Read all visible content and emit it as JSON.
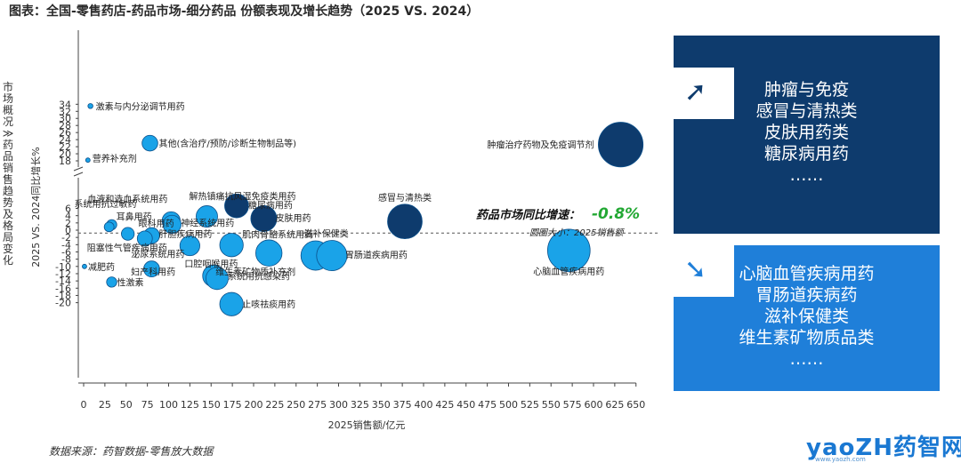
{
  "title": "图表：全国-零售药店-药品市场-细分药品 份额表现及增长趋势（2025 VS. 2024）",
  "side_title": "市场概况 ≫ 药品销售趋势及格局变化",
  "source": "数据来源：药智数据-零售放大数据",
  "annotation": {
    "growth_label": "药品市场同比增速：",
    "growth_value": "-0.8%",
    "bubble_note": "圆圈大小：2025销售额",
    "growth_color": "#22a833"
  },
  "panel_top": {
    "items": [
      "肿瘤与免疫",
      "感冒与清热类",
      "皮肤用药类",
      "糖尿病用药",
      "……"
    ],
    "color": "#0e3b6d"
  },
  "panel_bottom": {
    "items": [
      "心脑血管疾病用药",
      "胃肠道疾病药",
      "滋补保健类",
      "维生素矿物质品类",
      "……"
    ],
    "color": "#1f7fd9"
  },
  "logo": {
    "text": "yaoZH药智网",
    "url": "www.yaozh.com"
  },
  "chart_data": {
    "type": "scatter",
    "title": "",
    "xlabel": "2025销售额/亿元",
    "ylabel": "2025 VS. 2024同比增长%",
    "xlim": [
      0,
      650
    ],
    "x_ticks": [
      "0",
      "25",
      "50",
      "75",
      "100",
      "125",
      "150",
      "175",
      "200",
      "225",
      "250",
      "275",
      "300",
      "325",
      "350",
      "375",
      "400",
      "425",
      "450",
      "475",
      "500",
      "525",
      "550",
      "575",
      "600",
      "625",
      "650"
    ],
    "y_ticks_upper": [
      "34",
      "32",
      "30",
      "28",
      "26",
      "24",
      "22",
      "20",
      "18"
    ],
    "y_ticks_lower": [
      "6",
      "4",
      "2",
      "0",
      "-2",
      "-4",
      "-6",
      "-8",
      "-10",
      "-12",
      "-14",
      "-16",
      "-18",
      "-20"
    ],
    "y_axis_break": "between 6 and 18",
    "reference_line_y": -0.8,
    "grid": false,
    "point_colors": {
      "dark": "#0e3b6d",
      "light": "#1aa3e8"
    },
    "points": [
      {
        "label": "激素与内分泌调节用药",
        "x": 8,
        "y": 33.5,
        "c": "light"
      },
      {
        "label": "其他(含治疗/预防/诊断生物制品等)",
        "x": 78,
        "y": 23.0,
        "c": "light"
      },
      {
        "label": "营养补充剂",
        "x": 5,
        "y": 18.2,
        "c": "light"
      },
      {
        "label": "肿瘤治疗药物及免疫调节剂",
        "x": 632,
        "y": 22.6,
        "c": "dark"
      },
      {
        "label": "解热镇痛抗风湿免疫类用药",
        "x": 145,
        "y": 3.8,
        "c": "light"
      },
      {
        "label": "糖尿病用药",
        "x": 180,
        "y": 6.7,
        "c": "dark"
      },
      {
        "label": "血液和造血系统用药",
        "x": 103,
        "y": 2.6,
        "c": "light"
      },
      {
        "label": "系统用抗过敏药",
        "x": 33,
        "y": 1.5,
        "c": "light"
      },
      {
        "label": "皮肤用药",
        "x": 212,
        "y": 3.2,
        "c": "dark"
      },
      {
        "label": "感冒与清热类",
        "x": 378,
        "y": 2.4,
        "c": "dark"
      },
      {
        "label": "耳鼻用药",
        "x": 30,
        "y": 0.9,
        "c": "light"
      },
      {
        "label": "神经系统用药",
        "x": 104,
        "y": 1.6,
        "c": "light"
      },
      {
        "label": "眼科用药",
        "x": 52,
        "y": -1.0,
        "c": "light"
      },
      {
        "label": "肝胆疾病用药",
        "x": 80,
        "y": -1.5,
        "c": "light"
      },
      {
        "label": "阻塞性气管疾病用药",
        "x": 72,
        "y": -2.3,
        "c": "light"
      },
      {
        "label": "肌肉骨骼系统用药",
        "x": 174,
        "y": -4.1,
        "c": "light"
      },
      {
        "label": "泌尿系统用药",
        "x": 125,
        "y": -4.3,
        "c": "light"
      },
      {
        "label": "滋补保健类",
        "x": 273,
        "y": -7.0,
        "c": "light"
      },
      {
        "label": "胃肠道疾病用药",
        "x": 292,
        "y": -7.0,
        "c": "light"
      },
      {
        "label": "心脑血管疾病用药",
        "x": 571,
        "y": -5.6,
        "c": "light"
      },
      {
        "label": "维生素矿物质补充剂",
        "x": 218,
        "y": -6.3,
        "c": "light"
      },
      {
        "label": "减肥药",
        "x": 1,
        "y": -10.0,
        "c": "light"
      },
      {
        "label": "口腔咽喉用药",
        "x": 80,
        "y": -10.7,
        "c": "light"
      },
      {
        "label": "妇产科用药",
        "x": 153,
        "y": -12.6,
        "c": "light"
      },
      {
        "label": "系统用抗感染药",
        "x": 157,
        "y": -13.3,
        "c": "light"
      },
      {
        "label": "性激素",
        "x": 33,
        "y": -14.3,
        "c": "light"
      },
      {
        "label": "止咳祛痰用药",
        "x": 174,
        "y": -20.4,
        "c": "light"
      }
    ]
  }
}
